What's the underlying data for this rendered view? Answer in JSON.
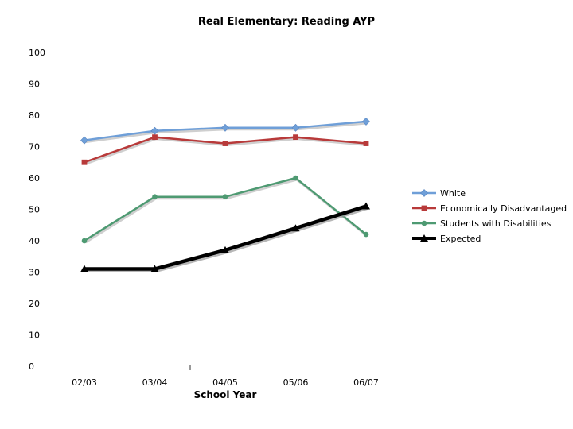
{
  "chart_data": {
    "type": "line",
    "title": "Real Elementary: Reading AYP",
    "xlabel": "School Year",
    "ylabel": "",
    "ylim": [
      0,
      100
    ],
    "yticks": [
      0,
      10,
      20,
      30,
      40,
      50,
      60,
      70,
      80,
      90,
      100
    ],
    "grid": false,
    "legend_position": "right",
    "categories": [
      "02/03",
      "03/04",
      "04/05",
      "05/06",
      "06/07"
    ],
    "series": [
      {
        "name": "White",
        "values": [
          72,
          75,
          76,
          76,
          78
        ],
        "color": "#6f9fd8",
        "marker": "diamond"
      },
      {
        "name": "Economically Disadvantaged",
        "values": [
          65,
          73,
          71,
          73,
          71
        ],
        "color": "#b83a3a",
        "marker": "square"
      },
      {
        "name": "Students with Disabilities",
        "values": [
          40,
          54,
          54,
          60,
          42
        ],
        "color": "#4e9a72",
        "marker": "circle"
      },
      {
        "name": "Expected",
        "values": [
          31,
          31,
          37,
          44,
          51
        ],
        "color": "#000000",
        "marker": "triangle"
      }
    ]
  }
}
